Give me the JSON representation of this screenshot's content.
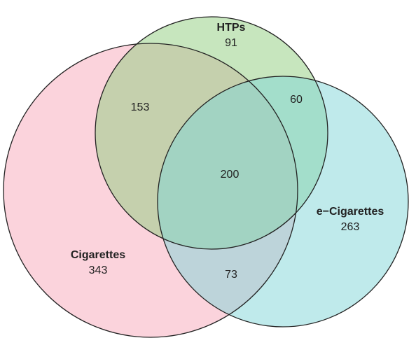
{
  "chart_data": {
    "type": "venn",
    "sets": [
      {
        "name": "Cigarettes",
        "color": "#f7a8ba",
        "value": 343
      },
      {
        "name": "HTPs",
        "color": "#8fce7e",
        "value": 91
      },
      {
        "name": "e−Cigarettes",
        "color": "#7fd6d8",
        "value": 263
      }
    ],
    "intersections": [
      {
        "sets": [
          0,
          1
        ],
        "value": 153
      },
      {
        "sets": [
          1,
          2
        ],
        "value": 60
      },
      {
        "sets": [
          0,
          2
        ],
        "value": 73
      },
      {
        "sets": [
          0,
          1,
          2
        ],
        "value": 200
      }
    ]
  }
}
